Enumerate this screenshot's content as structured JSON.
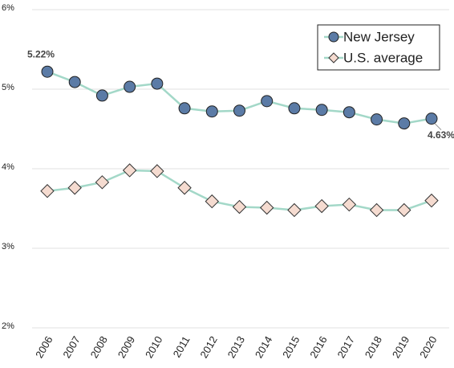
{
  "chart_data": {
    "type": "line",
    "categories": [
      "2006",
      "2007",
      "2008",
      "2009",
      "2010",
      "2011",
      "2012",
      "2013",
      "2014",
      "2015",
      "2016",
      "2017",
      "2018",
      "2019",
      "2020"
    ],
    "series": [
      {
        "name": "New Jersey",
        "color": "#5b7ba6",
        "marker": "circle",
        "values": [
          5.22,
          5.09,
          4.92,
          5.03,
          5.07,
          4.76,
          4.72,
          4.73,
          4.85,
          4.76,
          4.74,
          4.71,
          4.62,
          4.57,
          4.63
        ],
        "value_labels": [
          "5.22%",
          null,
          null,
          null,
          null,
          null,
          null,
          null,
          null,
          null,
          null,
          null,
          null,
          null,
          "4.63%"
        ]
      },
      {
        "name": "U.S. average",
        "color": "#f5dbd0",
        "marker": "diamond",
        "values": [
          3.72,
          3.76,
          3.83,
          3.98,
          3.97,
          3.76,
          3.59,
          3.52,
          3.51,
          3.48,
          3.53,
          3.55,
          3.48,
          3.48,
          3.6
        ]
      }
    ],
    "line_color": "#a3d8c8",
    "ylim": [
      2,
      6
    ],
    "yticks": [
      {
        "value": 2,
        "label": "2%"
      },
      {
        "value": 3,
        "label": "3%"
      },
      {
        "value": 4,
        "label": "4%"
      },
      {
        "value": 5,
        "label": "5%"
      },
      {
        "value": 6,
        "label": "6%"
      }
    ],
    "grid": true,
    "legend": "top-right"
  }
}
